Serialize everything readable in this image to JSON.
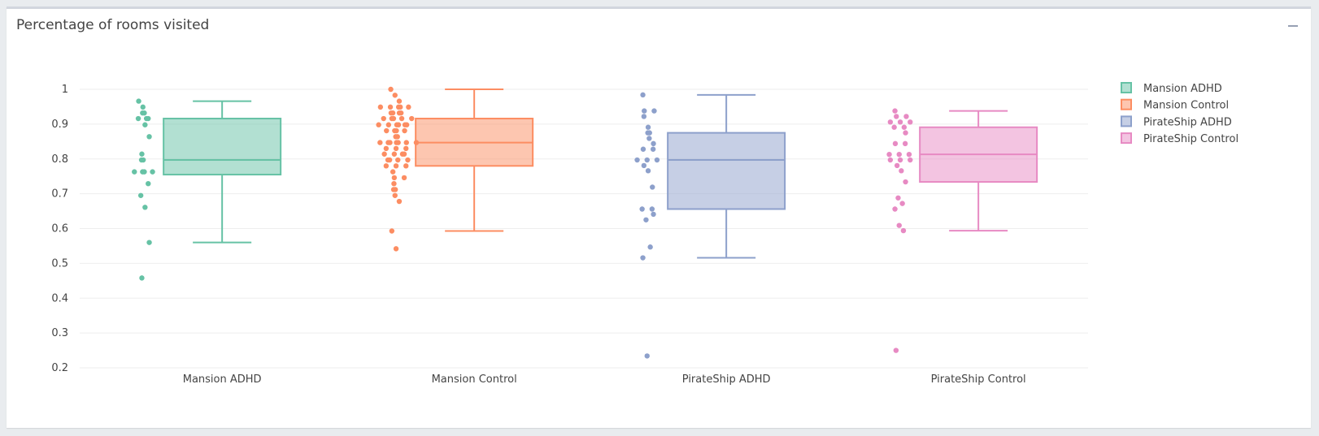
{
  "panel": {
    "title": "Percentage of rooms visited",
    "collapse_icon": "minus-icon"
  },
  "chart_data": {
    "type": "box",
    "title": "Percentage of rooms visited",
    "ylim": [
      0.18,
      1.03
    ],
    "yticks": [
      0.2,
      0.3,
      0.4,
      0.5,
      0.6,
      0.7,
      0.8,
      0.9,
      1
    ],
    "ytick_labels": [
      "0.2",
      "0.3",
      "0.4",
      "0.5",
      "0.6",
      "0.7",
      "0.8",
      "0.9",
      "1"
    ],
    "grid": true,
    "legend_position": "top-right",
    "series": [
      {
        "name": "Mansion ADHD",
        "color": "#66c2a5",
        "box": {
          "min": 0.56,
          "q1": 0.755,
          "median": 0.797,
          "q3": 0.916,
          "max": 0.966
        },
        "points": [
          0.966,
          0.949,
          0.932,
          0.932,
          0.916,
          0.916,
          0.916,
          0.898,
          0.864,
          0.814,
          0.797,
          0.797,
          0.763,
          0.763,
          0.763,
          0.763,
          0.729,
          0.695,
          0.661,
          0.56,
          0.458
        ]
      },
      {
        "name": "Mansion Control",
        "color": "#fc8d62",
        "box": {
          "min": 0.593,
          "q1": 0.78,
          "median": 0.847,
          "q3": 0.916,
          "max": 1.0
        },
        "points": [
          1.0,
          0.983,
          0.966,
          0.949,
          0.949,
          0.949,
          0.949,
          0.949,
          0.932,
          0.932,
          0.932,
          0.932,
          0.916,
          0.916,
          0.916,
          0.916,
          0.916,
          0.898,
          0.898,
          0.898,
          0.898,
          0.898,
          0.898,
          0.881,
          0.881,
          0.881,
          0.881,
          0.864,
          0.864,
          0.847,
          0.847,
          0.847,
          0.847,
          0.847,
          0.847,
          0.847,
          0.83,
          0.83,
          0.83,
          0.814,
          0.814,
          0.814,
          0.814,
          0.797,
          0.797,
          0.797,
          0.797,
          0.78,
          0.78,
          0.78,
          0.763,
          0.746,
          0.746,
          0.729,
          0.712,
          0.712,
          0.695,
          0.678,
          0.593,
          0.542
        ]
      },
      {
        "name": "PirateShip ADHD",
        "color": "#8da0cb",
        "box": {
          "min": 0.516,
          "q1": 0.656,
          "median": 0.797,
          "q3": 0.875,
          "max": 0.984
        },
        "points": [
          0.984,
          0.938,
          0.938,
          0.922,
          0.891,
          0.875,
          0.875,
          0.859,
          0.844,
          0.828,
          0.828,
          0.797,
          0.797,
          0.797,
          0.781,
          0.766,
          0.719,
          0.656,
          0.656,
          0.641,
          0.625,
          0.547,
          0.516,
          0.234
        ]
      },
      {
        "name": "PirateShip Control",
        "color": "#e78ac3",
        "box": {
          "min": 0.594,
          "q1": 0.734,
          "median": 0.813,
          "q3": 0.891,
          "max": 0.938
        },
        "points": [
          0.938,
          0.922,
          0.922,
          0.906,
          0.906,
          0.906,
          0.891,
          0.891,
          0.875,
          0.844,
          0.844,
          0.813,
          0.813,
          0.813,
          0.797,
          0.797,
          0.797,
          0.781,
          0.766,
          0.734,
          0.688,
          0.672,
          0.656,
          0.609,
          0.594,
          0.25
        ]
      }
    ]
  }
}
